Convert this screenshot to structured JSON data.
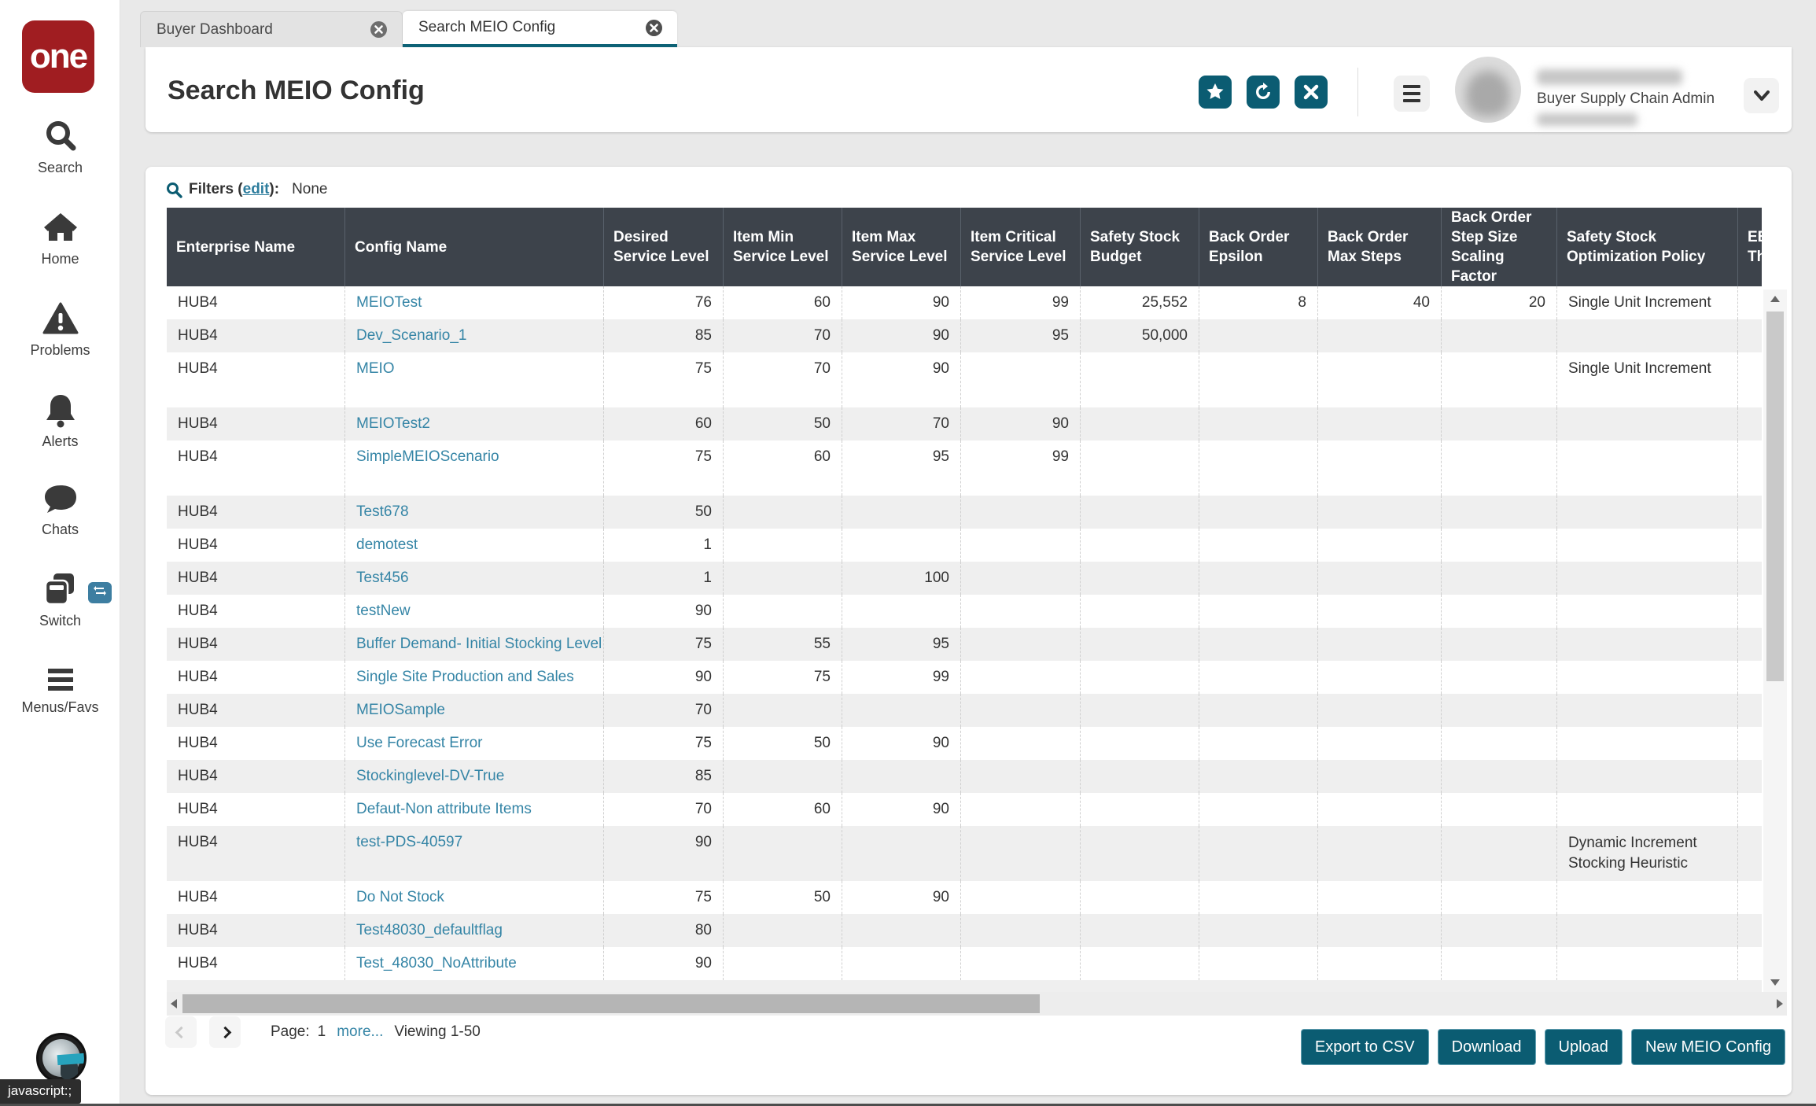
{
  "logo": {
    "text": "one"
  },
  "sidebar": {
    "items": [
      {
        "label": "Search"
      },
      {
        "label": "Home"
      },
      {
        "label": "Problems"
      },
      {
        "label": "Alerts"
      },
      {
        "label": "Chats"
      },
      {
        "label": "Switch"
      },
      {
        "label": "Menus/Favs"
      }
    ]
  },
  "statusbar": {
    "text": "javascript:;"
  },
  "tabs": [
    {
      "label": "Buyer Dashboard",
      "active": false
    },
    {
      "label": "Search MEIO Config",
      "active": true
    }
  ],
  "header": {
    "title": "Search MEIO Config",
    "icons": [
      "favorite-star-icon",
      "refresh-icon",
      "close-icon",
      "hamburger-menu-icon",
      "chevron-down-icon"
    ],
    "user": {
      "role": "Buyer Supply Chain Admin"
    }
  },
  "filters": {
    "prefix": "Filters (",
    "edit": "edit",
    "suffix": "):",
    "value": "None"
  },
  "table": {
    "columns": [
      {
        "label": "Enterprise Name"
      },
      {
        "label": "Config Name"
      },
      {
        "label": "Desired Service Level"
      },
      {
        "label": "Item Min Service Level"
      },
      {
        "label": "Item Max Service Level"
      },
      {
        "label": "Item Critical Service Level"
      },
      {
        "label": "Safety Stock Budget"
      },
      {
        "label": "Back Order Epsilon"
      },
      {
        "label": "Back Order Max Steps"
      },
      {
        "label": "Back Order Step Size Scaling Factor"
      },
      {
        "label": "Safety Stock Optimization Policy"
      },
      {
        "label": "EBO M",
        "label2": "Thresh"
      }
    ],
    "rows": [
      {
        "enterprise": "HUB4",
        "config": "MEIOTest",
        "values": [
          "76",
          "60",
          "90",
          "99",
          "25,552",
          "8",
          "40",
          "20"
        ],
        "policy": "Single Unit Increment"
      },
      {
        "enterprise": "HUB4",
        "config": "Dev_Scenario_1",
        "values": [
          "85",
          "70",
          "90",
          "95",
          "50,000",
          "",
          "",
          ""
        ],
        "policy": ""
      },
      {
        "enterprise": "HUB4",
        "config": "MEIO",
        "values": [
          "75",
          "70",
          "90",
          "",
          "",
          "",
          "",
          ""
        ],
        "policy": "Single Unit Increment",
        "tall": true
      },
      {
        "enterprise": "HUB4",
        "config": "MEIOTest2",
        "values": [
          "60",
          "50",
          "70",
          "90",
          "",
          "",
          "",
          ""
        ],
        "policy": ""
      },
      {
        "enterprise": "HUB4",
        "config": "SimpleMEIOScenario",
        "values": [
          "75",
          "60",
          "95",
          "99",
          "",
          "",
          "",
          ""
        ],
        "policy": "",
        "tall": true
      },
      {
        "enterprise": "HUB4",
        "config": "Test678",
        "values": [
          "50",
          "",
          "",
          "",
          "",
          "",
          "",
          ""
        ],
        "policy": ""
      },
      {
        "enterprise": "HUB4",
        "config": "demotest",
        "values": [
          "1",
          "",
          "",
          "",
          "",
          "",
          "",
          ""
        ],
        "policy": ""
      },
      {
        "enterprise": "HUB4",
        "config": "Test456",
        "values": [
          "1",
          "",
          "100",
          "",
          "",
          "",
          "",
          ""
        ],
        "policy": ""
      },
      {
        "enterprise": "HUB4",
        "config": "testNew",
        "values": [
          "90",
          "",
          "",
          "",
          "",
          "",
          "",
          ""
        ],
        "policy": ""
      },
      {
        "enterprise": "HUB4",
        "config": "Buffer Demand- Initial Stocking Level",
        "values": [
          "75",
          "55",
          "95",
          "",
          "",
          "",
          "",
          ""
        ],
        "policy": ""
      },
      {
        "enterprise": "HUB4",
        "config": "Single Site Production and Sales",
        "values": [
          "90",
          "75",
          "99",
          "",
          "",
          "",
          "",
          ""
        ],
        "policy": ""
      },
      {
        "enterprise": "HUB4",
        "config": "MEIOSample",
        "values": [
          "70",
          "",
          "",
          "",
          "",
          "",
          "",
          ""
        ],
        "policy": ""
      },
      {
        "enterprise": "HUB4",
        "config": "Use Forecast Error",
        "values": [
          "75",
          "50",
          "90",
          "",
          "",
          "",
          "",
          ""
        ],
        "policy": ""
      },
      {
        "enterprise": "HUB4",
        "config": "Stockinglevel-DV-True",
        "values": [
          "85",
          "",
          "",
          "",
          "",
          "",
          "",
          ""
        ],
        "policy": ""
      },
      {
        "enterprise": "HUB4",
        "config": "Defaut-Non attribute Items",
        "values": [
          "70",
          "60",
          "90",
          "",
          "",
          "",
          "",
          ""
        ],
        "policy": ""
      },
      {
        "enterprise": "HUB4",
        "config": "test-PDS-40597",
        "values": [
          "90",
          "",
          "",
          "",
          "",
          "",
          "",
          ""
        ],
        "policy": "Dynamic Increment Stocking Heuristic",
        "tall": true,
        "policy_wrap": true
      },
      {
        "enterprise": "HUB4",
        "config": "Do Not Stock",
        "values": [
          "75",
          "50",
          "90",
          "",
          "",
          "",
          "",
          ""
        ],
        "policy": ""
      },
      {
        "enterprise": "HUB4",
        "config": "Test48030_defaultflag",
        "values": [
          "80",
          "",
          "",
          "",
          "",
          "",
          "",
          ""
        ],
        "policy": ""
      },
      {
        "enterprise": "HUB4",
        "config": "Test_48030_NoAttribute",
        "values": [
          "90",
          "",
          "",
          "",
          "",
          "",
          "",
          ""
        ],
        "policy": ""
      },
      {
        "partial": true
      }
    ]
  },
  "pagination": {
    "page_label": "Page:",
    "page": "1",
    "more_label": "more...",
    "viewing": "Viewing 1-50"
  },
  "actions": {
    "export_label": "Export to CSV",
    "download_label": "Download",
    "upload_label": "Upload",
    "new_config_label": "New MEIO Config"
  },
  "colors": {
    "teal": "#0b5c72",
    "link": "#3585a6",
    "table_header_bg": "#3d434b",
    "logo_red": "#a01d21",
    "row_alt": "#efefef"
  }
}
